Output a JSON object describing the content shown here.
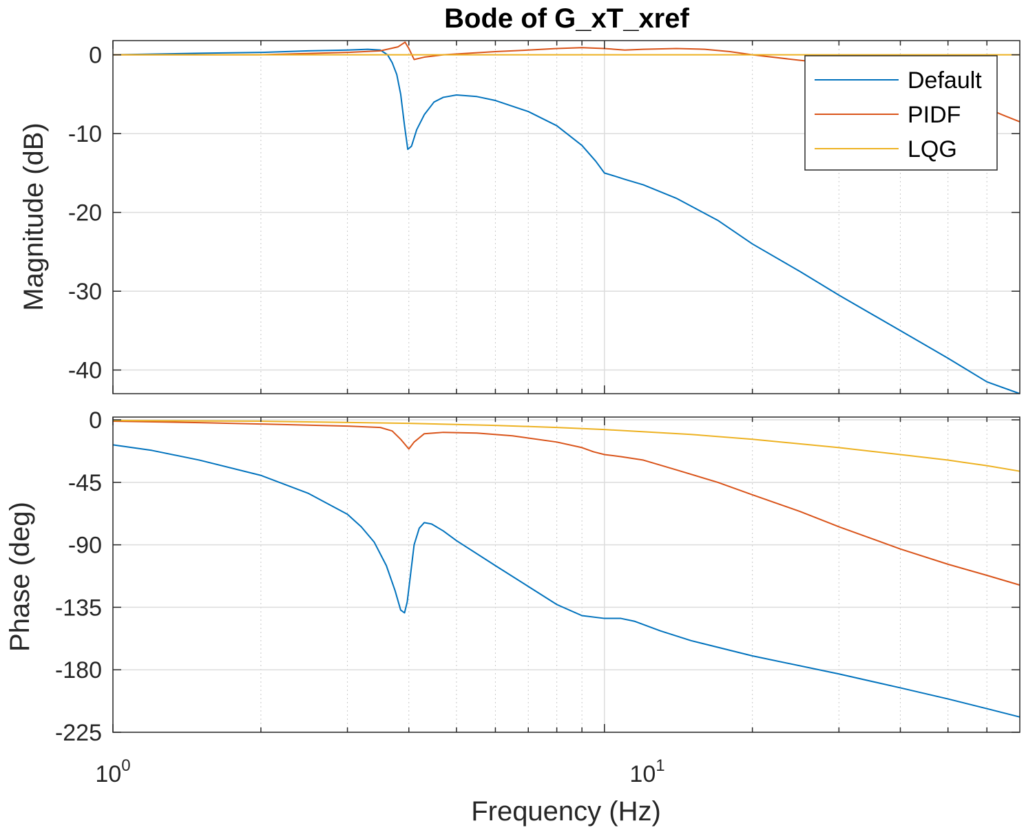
{
  "chart_data": {
    "type": "line",
    "title": "Bode of G_xT_xref",
    "xlabel": "Frequency  (Hz)",
    "xscale": "log",
    "xlim": [
      1,
      70
    ],
    "xtick_labels": [
      {
        "base": "10",
        "exp": "0",
        "value": 1
      },
      {
        "base": "10",
        "exp": "1",
        "value": 10
      }
    ],
    "grid": true,
    "legend": {
      "location": "top-right",
      "entries": [
        "Default",
        "PIDF",
        "LQG"
      ]
    },
    "colors": {
      "Default": "#0072BD",
      "PIDF": "#D95319",
      "LQG": "#EDB120"
    },
    "panels": [
      {
        "name": "magnitude",
        "ylabel": "Magnitude (dB)",
        "ylim": [
          -43,
          1.8
        ],
        "yticks": [
          0,
          -10,
          -20,
          -30,
          -40
        ],
        "ytick_labels": [
          "0",
          "-10",
          "-20",
          "-30",
          "-40"
        ],
        "series": [
          {
            "name": "Default",
            "points": [
              [
                1,
                0.0
              ],
              [
                1.5,
                0.2
              ],
              [
                2,
                0.3
              ],
              [
                2.5,
                0.5
              ],
              [
                3,
                0.6
              ],
              [
                3.3,
                0.7
              ],
              [
                3.5,
                0.6
              ],
              [
                3.62,
                0.0
              ],
              [
                3.7,
                -1.0
              ],
              [
                3.78,
                -2.5
              ],
              [
                3.85,
                -5.0
              ],
              [
                3.92,
                -9.0
              ],
              [
                3.98,
                -12.0
              ],
              [
                4.05,
                -11.6
              ],
              [
                4.15,
                -9.5
              ],
              [
                4.3,
                -7.6
              ],
              [
                4.5,
                -6.0
              ],
              [
                4.7,
                -5.4
              ],
              [
                5.0,
                -5.1
              ],
              [
                5.5,
                -5.3
              ],
              [
                6.0,
                -5.8
              ],
              [
                7.0,
                -7.2
              ],
              [
                8.0,
                -9.0
              ],
              [
                9.0,
                -11.5
              ],
              [
                9.6,
                -13.5
              ],
              [
                10.0,
                -15.0
              ],
              [
                10.5,
                -15.4
              ],
              [
                11.0,
                -15.8
              ],
              [
                12.0,
                -16.5
              ],
              [
                14.0,
                -18.2
              ],
              [
                17.0,
                -21.0
              ],
              [
                20.0,
                -24.0
              ],
              [
                25.0,
                -27.5
              ],
              [
                30.0,
                -30.5
              ],
              [
                40.0,
                -35.0
              ],
              [
                50.0,
                -38.5
              ],
              [
                60.0,
                -41.5
              ],
              [
                70.0,
                -43.0
              ]
            ]
          },
          {
            "name": "PIDF",
            "points": [
              [
                1,
                0.0
              ],
              [
                2,
                0.0
              ],
              [
                3,
                0.3
              ],
              [
                3.5,
                0.5
              ],
              [
                3.8,
                1.0
              ],
              [
                3.93,
                1.6
              ],
              [
                4.0,
                0.8
              ],
              [
                4.1,
                -0.6
              ],
              [
                4.3,
                -0.3
              ],
              [
                4.7,
                0.0
              ],
              [
                6.0,
                0.4
              ],
              [
                7.0,
                0.6
              ],
              [
                8.0,
                0.8
              ],
              [
                9.0,
                0.9
              ],
              [
                10.0,
                0.8
              ],
              [
                11.0,
                0.6
              ],
              [
                12.0,
                0.7
              ],
              [
                14.0,
                0.8
              ],
              [
                16.0,
                0.7
              ],
              [
                18.0,
                0.4
              ],
              [
                20.0,
                0.0
              ],
              [
                25.0,
                -0.7
              ],
              [
                30.0,
                -1.2
              ],
              [
                40.0,
                -2.0
              ],
              [
                45.0,
                -3.0
              ],
              [
                50.0,
                -4.3
              ],
              [
                55.0,
                -5.6
              ],
              [
                60.0,
                -6.8
              ],
              [
                65.0,
                -7.7
              ],
              [
                70.0,
                -8.5
              ]
            ]
          },
          {
            "name": "LQG",
            "points": [
              [
                1,
                0.0
              ],
              [
                5,
                0.0
              ],
              [
                10,
                0.0
              ],
              [
                20,
                0.0
              ],
              [
                40,
                0.0
              ],
              [
                70,
                0.0
              ]
            ]
          }
        ]
      },
      {
        "name": "phase",
        "ylabel": "Phase (deg)",
        "ylim": [
          -225,
          2
        ],
        "yticks": [
          0,
          -45,
          -90,
          -135,
          -180,
          -225
        ],
        "ytick_labels": [
          "0",
          "-45",
          "-90",
          "-135",
          "-180",
          "-225"
        ],
        "series": [
          {
            "name": "Default",
            "points": [
              [
                1,
                -18
              ],
              [
                1.2,
                -22
              ],
              [
                1.5,
                -29
              ],
              [
                2.0,
                -40
              ],
              [
                2.5,
                -53
              ],
              [
                3.0,
                -68
              ],
              [
                3.2,
                -77
              ],
              [
                3.4,
                -88
              ],
              [
                3.6,
                -105
              ],
              [
                3.75,
                -123
              ],
              [
                3.85,
                -137
              ],
              [
                3.92,
                -139
              ],
              [
                3.97,
                -131
              ],
              [
                4.03,
                -112
              ],
              [
                4.1,
                -90
              ],
              [
                4.2,
                -78
              ],
              [
                4.3,
                -74
              ],
              [
                4.45,
                -75
              ],
              [
                4.7,
                -80
              ],
              [
                5.0,
                -87
              ],
              [
                6.0,
                -105
              ],
              [
                7.0,
                -120
              ],
              [
                8.0,
                -133
              ],
              [
                9.0,
                -141
              ],
              [
                10.0,
                -143
              ],
              [
                10.8,
                -143
              ],
              [
                11.5,
                -145
              ],
              [
                13.0,
                -152
              ],
              [
                15.0,
                -159
              ],
              [
                20.0,
                -170
              ],
              [
                30.0,
                -183
              ],
              [
                40.0,
                -193
              ],
              [
                50.0,
                -201
              ],
              [
                60.0,
                -208
              ],
              [
                70.0,
                -214
              ]
            ]
          },
          {
            "name": "PIDF",
            "points": [
              [
                1,
                -1
              ],
              [
                1.5,
                -2
              ],
              [
                2.0,
                -3
              ],
              [
                3.0,
                -4.5
              ],
              [
                3.5,
                -5.5
              ],
              [
                3.7,
                -8
              ],
              [
                3.85,
                -14
              ],
              [
                4.0,
                -21
              ],
              [
                4.1,
                -16
              ],
              [
                4.3,
                -10
              ],
              [
                4.7,
                -9
              ],
              [
                5.5,
                -9.5
              ],
              [
                6.5,
                -11.5
              ],
              [
                8.0,
                -16
              ],
              [
                9.0,
                -20
              ],
              [
                9.5,
                -23
              ],
              [
                10.0,
                -25
              ],
              [
                10.8,
                -26.5
              ],
              [
                12.0,
                -29
              ],
              [
                14.0,
                -36
              ],
              [
                17.0,
                -45
              ],
              [
                20.0,
                -54
              ],
              [
                25.0,
                -66
              ],
              [
                30.0,
                -77
              ],
              [
                40.0,
                -93
              ],
              [
                50.0,
                -104
              ],
              [
                60.0,
                -112
              ],
              [
                70.0,
                -119
              ]
            ]
          },
          {
            "name": "LQG",
            "points": [
              [
                1,
                -0.5
              ],
              [
                2,
                -1
              ],
              [
                4,
                -2.5
              ],
              [
                6,
                -4
              ],
              [
                8,
                -5.5
              ],
              [
                10,
                -7
              ],
              [
                15,
                -10.5
              ],
              [
                20,
                -14
              ],
              [
                30,
                -20
              ],
              [
                40,
                -25
              ],
              [
                50,
                -29
              ],
              [
                60,
                -33
              ],
              [
                70,
                -37
              ]
            ]
          }
        ]
      }
    ]
  }
}
